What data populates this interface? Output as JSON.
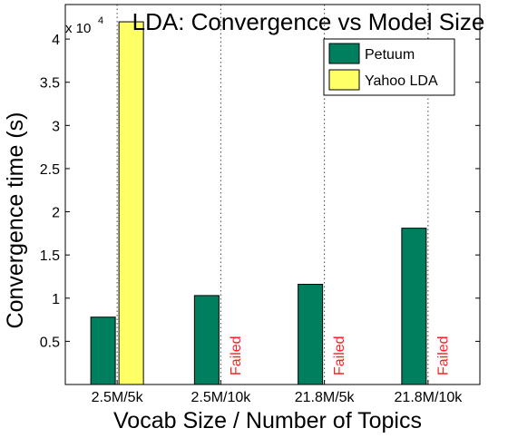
{
  "chart_data": {
    "type": "bar",
    "title": "LDA: Convergence vs Model Size",
    "xlabel": "Vocab Size / Number of Topics",
    "ylabel": "Convergence time (s)",
    "y_multiplier_text": "x 10",
    "y_multiplier_exponent": "4",
    "ylim": [
      0,
      4.4
    ],
    "yticks": [
      "0.5",
      "1",
      "1.5",
      "2",
      "2.5",
      "3",
      "3.5",
      "4"
    ],
    "categories": [
      "2.5M/5k",
      "2.5M/10k",
      "21.8M/5k",
      "21.8M/10k"
    ],
    "grid": "vertical dotted",
    "legend_position": "top-right",
    "series": [
      {
        "name": "Petuum",
        "color": "#007f5f",
        "values": [
          0.78,
          1.03,
          1.16,
          1.81
        ]
      },
      {
        "name": "Yahoo LDA",
        "color": "#ffff66",
        "values": [
          4.2,
          null,
          null,
          null
        ]
      }
    ],
    "failed_label": "Failed",
    "failed_color": "#ff2020"
  }
}
